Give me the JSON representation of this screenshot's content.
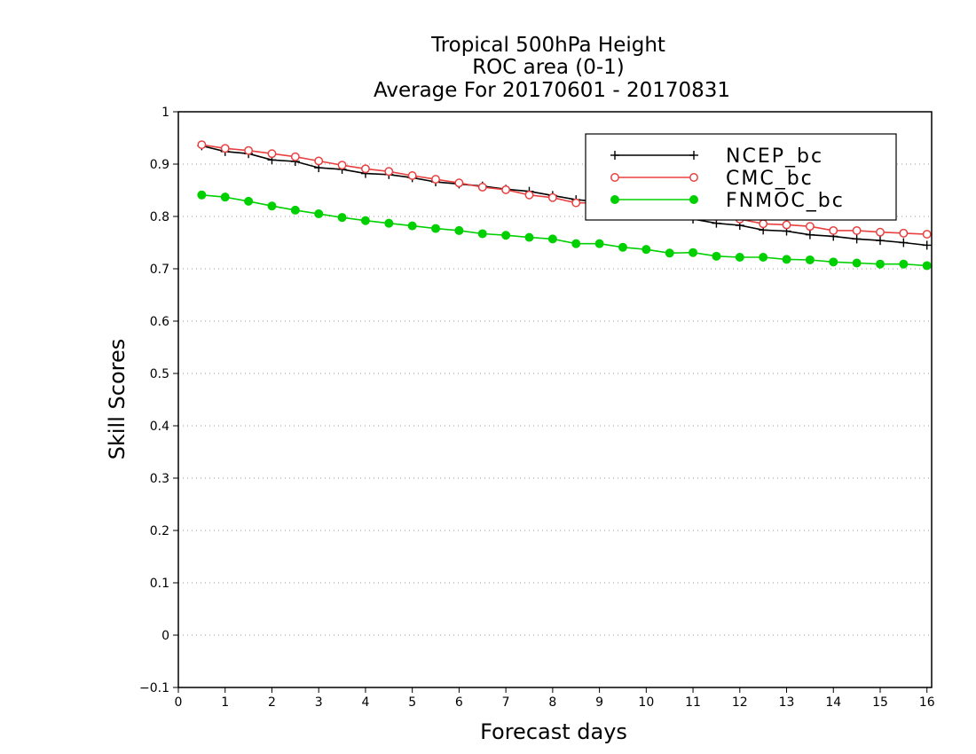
{
  "chart_data": {
    "type": "line",
    "title_lines": [
      "Tropical 500hPa Height",
      "ROC area (0-1)",
      "Average For 20170601 - 20170831"
    ],
    "xlabel": "Forecast days",
    "ylabel": "Skill Scores",
    "xlim": [
      0,
      16.1
    ],
    "ylim": [
      -0.1,
      1
    ],
    "xticks": [
      "0",
      "1",
      "2",
      "3",
      "4",
      "5",
      "6",
      "7",
      "8",
      "9",
      "10",
      "11",
      "12",
      "13",
      "14",
      "15",
      "16"
    ],
    "yticks": [
      "−0.1",
      "0",
      "0.1",
      "0.2",
      "0.3",
      "0.4",
      "0.5",
      "0.6",
      "0.7",
      "0.8",
      "0.9",
      "1"
    ],
    "grid": "horizontal-dotted",
    "legend_position": "top-right",
    "x": [
      0.5,
      1,
      1.5,
      2,
      2.5,
      3,
      3.5,
      4,
      4.5,
      5,
      5.5,
      6,
      6.5,
      7,
      7.5,
      8,
      8.5,
      9,
      9.5,
      10,
      10.5,
      11,
      11.5,
      12,
      12.5,
      13,
      13.5,
      14,
      14.5,
      15,
      15.5,
      16
    ],
    "series": [
      {
        "name": "NCEP_bc",
        "color": "#000000",
        "marker": "plus",
        "values": [
          0.935,
          0.924,
          0.92,
          0.908,
          0.905,
          0.893,
          0.89,
          0.882,
          0.88,
          0.874,
          0.866,
          0.862,
          0.858,
          0.852,
          0.848,
          0.84,
          0.832,
          0.828,
          0.822,
          0.816,
          0.81,
          0.795,
          0.787,
          0.783,
          0.774,
          0.772,
          0.765,
          0.762,
          0.757,
          0.754,
          0.75,
          0.745
        ]
      },
      {
        "name": "CMC_bc",
        "color": "#e84040",
        "marker": "open-circle",
        "values": [
          0.937,
          0.93,
          0.926,
          0.92,
          0.914,
          0.906,
          0.898,
          0.891,
          0.886,
          0.878,
          0.871,
          0.864,
          0.856,
          0.851,
          0.841,
          0.836,
          0.826,
          0.826,
          0.818,
          0.81,
          0.81,
          0.81,
          0.8,
          0.795,
          0.786,
          0.784,
          0.781,
          0.773,
          0.773,
          0.77,
          0.768,
          0.766
        ]
      },
      {
        "name": "FNMOC_bc",
        "color": "#00d000",
        "marker": "filled-circle",
        "values": [
          0.841,
          0.837,
          0.829,
          0.82,
          0.812,
          0.805,
          0.798,
          0.792,
          0.787,
          0.782,
          0.777,
          0.773,
          0.767,
          0.764,
          0.76,
          0.757,
          0.748,
          0.748,
          0.741,
          0.737,
          0.73,
          0.731,
          0.724,
          0.722,
          0.722,
          0.718,
          0.717,
          0.713,
          0.711,
          0.709,
          0.709,
          0.706
        ]
      }
    ]
  }
}
